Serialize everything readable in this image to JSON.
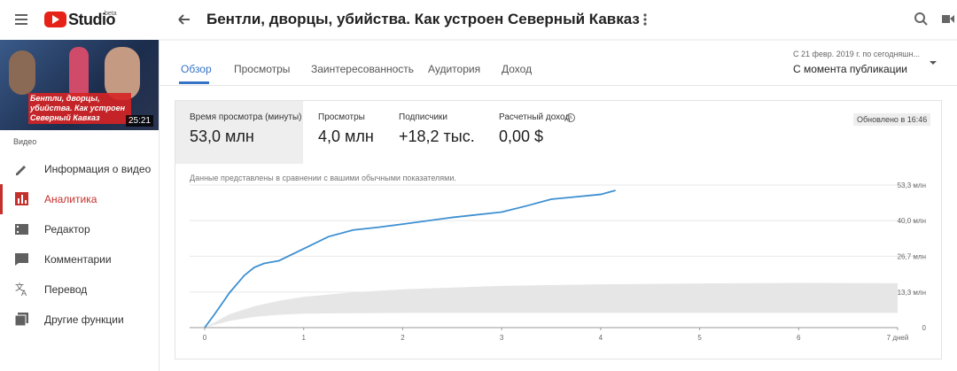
{
  "header": {
    "app": "Studio",
    "badge": "beta",
    "title": "Бентли, дворцы, убийства. Как устроен Северный Кавказ"
  },
  "sidebar": {
    "thumbnail_text": "Бентли, дворцы, убийства. Как устроен Северный Кавказ",
    "duration": "25:21",
    "section": "Видео",
    "menu": [
      "Информация о видео",
      "Аналитика",
      "Редактор",
      "Комментарии",
      "Перевод",
      "Другие функции"
    ],
    "active": 1
  },
  "tabs": [
    "Обзор",
    "Просмотры",
    "Заинтересованность",
    "Аудитория",
    "Доход"
  ],
  "date_range": {
    "label": "С 21 февр. 2019 г. по сегодняшн...",
    "value": "С момента публикации"
  },
  "metrics": [
    {
      "label": "Время просмотра (минуты)",
      "value": "53,0 млн"
    },
    {
      "label": "Просмотры",
      "value": "4,0 млн"
    },
    {
      "label": "Подписчики",
      "value": "+18,2 тыс."
    },
    {
      "label": "Расчетный доход",
      "value": "0,00 $"
    }
  ],
  "updated": "Обновлено в 16:46",
  "chart_data": {
    "type": "line",
    "note": "Данные представлены в сравнении с вашими обычными показателями.",
    "x": [
      0,
      0.1,
      0.25,
      0.4,
      0.5,
      0.6,
      0.75,
      1,
      1.25,
      1.5,
      1.75,
      2,
      2.5,
      3,
      3.25,
      3.5,
      4,
      4.15
    ],
    "series": [
      {
        "color": "#3d8fd1",
        "values": [
          0,
          5,
          13,
          19.5,
          22.5,
          24,
          25,
          29.5,
          34,
          36.5,
          37.5,
          38.7,
          41.2,
          43.2,
          45.5,
          48,
          49.8,
          51.3
        ]
      }
    ],
    "band": {
      "color": "#e6e6e6",
      "x": [
        0,
        0.25,
        0.5,
        0.75,
        1,
        1.5,
        2,
        3,
        4,
        5,
        6,
        7
      ],
      "upper": [
        0,
        5,
        8,
        10,
        11.5,
        13.2,
        14.3,
        15.6,
        16.2,
        16.5,
        16.7,
        16.6
      ],
      "lower": [
        0,
        2.5,
        4,
        4.8,
        5.2,
        5.4,
        5.5,
        5.5,
        5.5,
        5.5,
        5.5,
        5.5
      ]
    },
    "xlim": [
      0,
      7
    ],
    "ylim": [
      0,
      53.3
    ],
    "xticks": [
      0,
      1,
      2,
      3,
      4,
      5,
      6,
      {
        "value": 7,
        "label": "7 дней"
      }
    ],
    "yticks": [
      0,
      {
        "value": 13.3,
        "label": "13,3 млн"
      },
      {
        "value": 26.7,
        "label": "26,7 млн"
      },
      {
        "value": 40,
        "label": "40,0 млн"
      },
      {
        "value": 53.3,
        "label": "53,3 млн"
      }
    ],
    "grid": true
  }
}
